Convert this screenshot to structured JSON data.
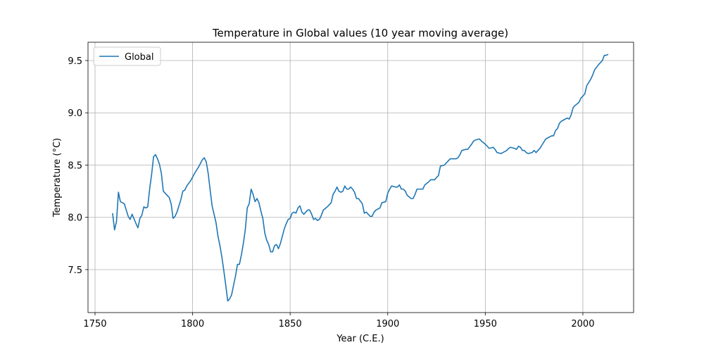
{
  "chart_data": {
    "type": "line",
    "title": "Temperature in Global values (10 year moving average)",
    "xlabel": "Year (C.E.)",
    "ylabel": "Temperature (°C)",
    "x": [
      1759,
      1760,
      1761,
      1762,
      1763,
      1765,
      1766,
      1767,
      1768,
      1769,
      1771,
      1772,
      1773,
      1774,
      1775,
      1776,
      1777,
      1778,
      1779,
      1780,
      1781,
      1782,
      1783,
      1784,
      1785,
      1786,
      1787,
      1788,
      1789,
      1790,
      1791,
      1792,
      1793,
      1794,
      1795,
      1796,
      1797,
      1799,
      1801,
      1803,
      1805,
      1806,
      1807,
      1808,
      1809,
      1810,
      1812,
      1813,
      1814,
      1815,
      1816,
      1817,
      1818,
      1819,
      1820,
      1821,
      1822,
      1823,
      1824,
      1825,
      1826,
      1827,
      1828,
      1829,
      1830,
      1831,
      1832,
      1833,
      1834,
      1835,
      1836,
      1837,
      1838,
      1839,
      1840,
      1841,
      1842,
      1843,
      1844,
      1845,
      1846,
      1847,
      1848,
      1849,
      1850,
      1851,
      1852,
      1853,
      1854,
      1855,
      1856,
      1857,
      1858,
      1859,
      1860,
      1861,
      1862,
      1863,
      1864,
      1865,
      1866,
      1867,
      1869,
      1871,
      1872,
      1873,
      1874,
      1875,
      1876,
      1877,
      1878,
      1879,
      1880,
      1881,
      1882,
      1883,
      1884,
      1885,
      1887,
      1888,
      1889,
      1890,
      1891,
      1892,
      1893,
      1894,
      1896,
      1897,
      1899,
      1900,
      1901,
      1902,
      1904,
      1905,
      1906,
      1907,
      1908,
      1909,
      1910,
      1912,
      1913,
      1914,
      1915,
      1916,
      1917,
      1918,
      1919,
      1921,
      1922,
      1924,
      1926,
      1927,
      1929,
      1930,
      1931,
      1932,
      1933,
      1935,
      1936,
      1937,
      1938,
      1940,
      1941,
      1943,
      1944,
      1945,
      1947,
      1948,
      1950,
      1951,
      1952,
      1954,
      1955,
      1956,
      1958,
      1959,
      1961,
      1962,
      1963,
      1965,
      1966,
      1967,
      1968,
      1969,
      1970,
      1971,
      1972,
      1974,
      1975,
      1976,
      1977,
      1978,
      1979,
      1981,
      1982,
      1984,
      1985,
      1986,
      1987,
      1988,
      1989,
      1991,
      1992,
      1993,
      1994,
      1995,
      1996,
      1998,
      1999,
      2000,
      2001,
      2002,
      2004,
      2005,
      2006,
      2008,
      2009,
      2010,
      2011,
      2012,
      2013
    ],
    "series": [
      {
        "name": "Global",
        "color": "#1f77b4",
        "values": [
          8.04,
          7.88,
          7.96,
          8.24,
          8.15,
          8.13,
          8.07,
          8.01,
          7.98,
          8.03,
          7.94,
          7.9,
          7.99,
          8.02,
          8.1,
          8.09,
          8.1,
          8.27,
          8.41,
          8.58,
          8.6,
          8.56,
          8.51,
          8.42,
          8.25,
          8.23,
          8.21,
          8.19,
          8.13,
          7.99,
          8.01,
          8.05,
          8.11,
          8.17,
          8.25,
          8.26,
          8.3,
          8.35,
          8.42,
          8.48,
          8.55,
          8.57,
          8.53,
          8.42,
          8.26,
          8.11,
          7.95,
          7.82,
          7.73,
          7.62,
          7.49,
          7.35,
          7.2,
          7.22,
          7.26,
          7.35,
          7.44,
          7.55,
          7.55,
          7.64,
          7.75,
          7.88,
          8.09,
          8.13,
          8.27,
          8.22,
          8.15,
          8.18,
          8.14,
          8.06,
          7.99,
          7.85,
          7.78,
          7.74,
          7.67,
          7.67,
          7.73,
          7.74,
          7.7,
          7.75,
          7.82,
          7.89,
          7.94,
          7.98,
          7.99,
          8.04,
          8.05,
          8.04,
          8.09,
          8.11,
          8.05,
          8.03,
          8.05,
          8.07,
          8.07,
          8.03,
          7.98,
          7.99,
          7.97,
          7.98,
          8.02,
          8.07,
          8.1,
          8.14,
          8.22,
          8.25,
          8.29,
          8.25,
          8.24,
          8.25,
          8.3,
          8.27,
          8.27,
          8.29,
          8.27,
          8.24,
          8.18,
          8.18,
          8.13,
          8.04,
          8.05,
          8.03,
          8.01,
          8.01,
          8.05,
          8.07,
          8.09,
          8.14,
          8.15,
          8.23,
          8.27,
          8.3,
          8.29,
          8.29,
          8.31,
          8.27,
          8.27,
          8.25,
          8.21,
          8.18,
          8.18,
          8.22,
          8.27,
          8.27,
          8.27,
          8.27,
          8.31,
          8.34,
          8.36,
          8.36,
          8.4,
          8.49,
          8.5,
          8.52,
          8.54,
          8.56,
          8.56,
          8.56,
          8.57,
          8.6,
          8.64,
          8.65,
          8.65,
          8.7,
          8.73,
          8.74,
          8.75,
          8.73,
          8.7,
          8.68,
          8.66,
          8.67,
          8.65,
          8.62,
          8.61,
          8.62,
          8.64,
          8.66,
          8.67,
          8.66,
          8.65,
          8.68,
          8.67,
          8.64,
          8.64,
          8.62,
          8.61,
          8.62,
          8.64,
          8.62,
          8.64,
          8.66,
          8.69,
          8.75,
          8.76,
          8.78,
          8.78,
          8.83,
          8.85,
          8.9,
          8.92,
          8.94,
          8.95,
          8.94,
          8.98,
          9.05,
          9.07,
          9.1,
          9.14,
          9.16,
          9.18,
          9.26,
          9.32,
          9.36,
          9.41,
          9.46,
          9.48,
          9.5,
          9.55,
          9.55,
          9.56
        ]
      }
    ],
    "xlim": [
      1746.4,
      2026.0
    ],
    "ylim": [
      7.089,
      9.675
    ],
    "xticks": [
      1750,
      1800,
      1850,
      1900,
      1950,
      2000
    ],
    "yticks": [
      {
        "value": 7.5,
        "label": "7.5"
      },
      {
        "value": 8.0,
        "label": "8.0"
      },
      {
        "value": 8.5,
        "label": "8.5"
      },
      {
        "value": 9.0,
        "label": "9.0"
      },
      {
        "value": 9.5,
        "label": "9.5"
      }
    ],
    "grid": true,
    "legend": "upper left"
  }
}
